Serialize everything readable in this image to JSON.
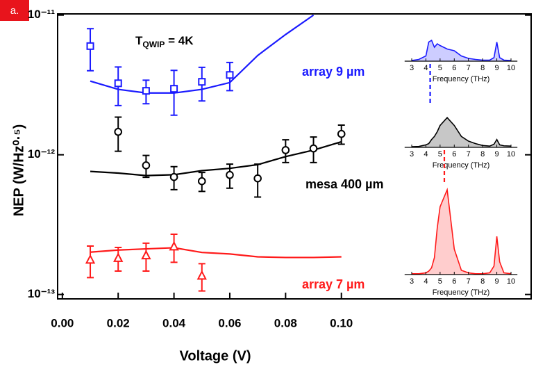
{
  "panel_label": "a.",
  "temperature_label": {
    "symbol": "T",
    "subscript": "QWIP",
    "text": " = 4K"
  },
  "chart_data": [
    {
      "type": "line",
      "xlabel": "Voltage (V)",
      "ylabel": "NEP (W/Hz⁰·⁵)",
      "log_y": true,
      "xlim": [
        -0.0017,
        0.168
      ],
      "ylim": [
        9.3e-14,
        1.02e-11
      ],
      "xticks": [
        {
          "value": 0,
          "label": "0.00"
        },
        {
          "value": 0.02,
          "label": "0.02"
        },
        {
          "value": 0.04,
          "label": "0.04"
        },
        {
          "value": 0.06,
          "label": "0.06"
        },
        {
          "value": 0.08,
          "label": "0.08"
        },
        {
          "value": 0.1,
          "label": "0.10"
        }
      ],
      "yticks": [
        {
          "value": 1e-11,
          "label": "10⁻¹¹"
        },
        {
          "value": 1e-12,
          "label": "10⁻¹²"
        },
        {
          "value": 1e-13,
          "label": "10⁻¹³"
        }
      ],
      "series": [
        {
          "name": "array 9 µm",
          "color": "#1a1aff",
          "marker": "square",
          "x": [
            0.01,
            0.02,
            0.03,
            0.04,
            0.05,
            0.06
          ],
          "values": [
            6e-12,
            3.25e-12,
            2.87e-12,
            2.97e-12,
            3.33e-12,
            3.73e-12
          ],
          "errors": [
            2e-12,
            1e-12,
            5.5e-13,
            1.05e-12,
            9e-13,
            8.5e-13
          ],
          "fit_x": [
            0.01,
            0.02,
            0.03,
            0.04,
            0.05,
            0.06,
            0.07,
            0.08,
            0.09
          ],
          "fit_values": [
            3.37e-12,
            2.94e-12,
            2.77e-12,
            2.77e-12,
            2.94e-12,
            3.29e-12,
            5.14e-12,
            7.26e-12,
            1e-11
          ]
        },
        {
          "name": "mesa 400 µm",
          "color": "#000000",
          "marker": "circle",
          "x": [
            0.02,
            0.03,
            0.04,
            0.05,
            0.06,
            0.07,
            0.08,
            0.09,
            0.1
          ],
          "values": [
            1.46e-12,
            8.4e-13,
            6.93e-13,
            6.47e-13,
            7.17e-13,
            6.78e-13,
            1.08e-12,
            1.11e-12,
            1.41e-12
          ],
          "errors": [
            4e-13,
            1.5e-13,
            1.3e-13,
            1e-13,
            1.4e-13,
            1.8e-13,
            2e-13,
            2.3e-13,
            2.2e-13
          ],
          "fit_x": [
            0.01,
            0.02,
            0.03,
            0.04,
            0.05,
            0.06,
            0.07,
            0.08,
            0.09,
            0.1
          ],
          "fit_values": [
            7.6e-13,
            7.4e-13,
            7.1e-13,
            7.2e-13,
            7.7e-13,
            8e-13,
            8.5e-13,
            9.7e-13,
            1.08e-12,
            1.24e-12
          ]
        },
        {
          "name": "array 7 µm",
          "color": "#ff1a1a",
          "marker": "triangle",
          "x": [
            0.01,
            0.02,
            0.03,
            0.04,
            0.05
          ],
          "values": [
            1.77e-13,
            1.82e-13,
            1.9e-13,
            2.2e-13,
            1.36e-13
          ],
          "errors": [
            4.5e-14,
            3.5e-14,
            4.3e-14,
            5e-14,
            3e-14
          ],
          "fit_x": [
            0.01,
            0.02,
            0.03,
            0.04,
            0.05,
            0.06,
            0.07,
            0.08,
            0.09,
            0.1
          ],
          "fit_values": [
            2.01e-13,
            2.08e-13,
            2.12e-13,
            2.16e-13,
            2e-13,
            1.95e-13,
            1.86e-13,
            1.84e-13,
            1.84e-13,
            1.86e-13
          ]
        }
      ]
    },
    {
      "type": "area",
      "xlabel": "Frequency (THz)",
      "color": "#1a1aff",
      "marker_line": 4.3,
      "xlim": [
        2.5,
        10.45
      ],
      "xticks": [
        3,
        4,
        5,
        6,
        7,
        8,
        9,
        10
      ],
      "x": [
        3,
        3.5,
        4,
        4.2,
        4.4,
        4.6,
        4.8,
        5,
        5.5,
        6,
        6.5,
        7,
        7.5,
        8,
        8.5,
        8.8,
        9,
        9.2,
        9.5,
        10
      ],
      "values": [
        0.02,
        0.05,
        0.15,
        0.55,
        0.6,
        0.4,
        0.5,
        0.45,
        0.35,
        0.3,
        0.15,
        0.08,
        0.05,
        0.03,
        0.03,
        0.1,
        0.55,
        0.1,
        0.03,
        0.02
      ]
    },
    {
      "type": "area",
      "xlabel": "Frequency (THz)",
      "color": "#000000",
      "marker_line": 5.3,
      "xlim": [
        2.5,
        10.45
      ],
      "xticks": [
        3,
        4,
        5,
        6,
        7,
        8,
        9,
        10
      ],
      "x": [
        3,
        3.5,
        4,
        4.2,
        4.4,
        4.6,
        4.8,
        5,
        5.5,
        6,
        6.5,
        7,
        7.5,
        8,
        8.5,
        8.8,
        9,
        9.2,
        9.5,
        10
      ],
      "values": [
        0.02,
        0.03,
        0.08,
        0.12,
        0.25,
        0.35,
        0.5,
        0.7,
        0.95,
        0.7,
        0.35,
        0.2,
        0.12,
        0.06,
        0.04,
        0.1,
        0.25,
        0.08,
        0.05,
        0.04
      ]
    },
    {
      "type": "area",
      "xlabel": "Frequency (THz)",
      "color": "#ff1a1a",
      "xlim": [
        2.5,
        10.45
      ],
      "xticks": [
        3,
        4,
        5,
        6,
        7,
        8,
        9,
        10
      ],
      "x": [
        3,
        3.5,
        4,
        4.2,
        4.4,
        4.6,
        4.8,
        5,
        5.5,
        6,
        6.5,
        7,
        7.5,
        8,
        8.5,
        8.8,
        9,
        9.2,
        9.5,
        10
      ],
      "values": [
        0.01,
        0.01,
        0.02,
        0.04,
        0.08,
        0.2,
        0.55,
        0.8,
        1.0,
        0.3,
        0.05,
        0.02,
        0.01,
        0.01,
        0.02,
        0.1,
        0.45,
        0.15,
        0.02,
        0.01
      ]
    }
  ]
}
